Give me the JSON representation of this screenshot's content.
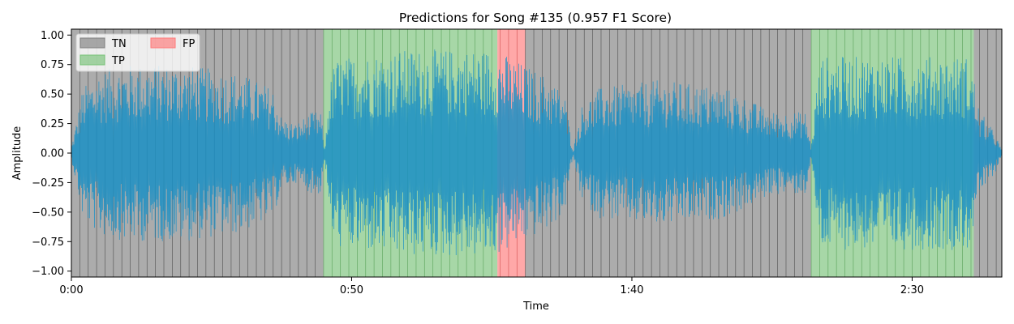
{
  "chart_data": {
    "type": "area",
    "title": "Predictions for Song #135 (0.957 F1 Score)",
    "xlabel": "Time",
    "ylabel": "Amplitude",
    "xlim": [
      0,
      166
    ],
    "ylim": [
      -1.05,
      1.05
    ],
    "x_ticks": [
      {
        "value": 0,
        "label": "0:00"
      },
      {
        "value": 50,
        "label": "0:50"
      },
      {
        "value": 100,
        "label": "1:40"
      },
      {
        "value": 150,
        "label": "2:30"
      }
    ],
    "y_ticks": [
      {
        "value": 1.0,
        "label": "1.00"
      },
      {
        "value": 0.75,
        "label": "0.75"
      },
      {
        "value": 0.5,
        "label": "0.50"
      },
      {
        "value": 0.25,
        "label": "0.25"
      },
      {
        "value": 0.0,
        "label": "0.00"
      },
      {
        "value": -0.25,
        "label": "−0.25"
      },
      {
        "value": -0.5,
        "label": "−0.50"
      },
      {
        "value": -0.75,
        "label": "−0.75"
      },
      {
        "value": -1.0,
        "label": "−1.00"
      }
    ],
    "legend": {
      "placement": "upper-left",
      "entries": [
        {
          "label": "TN",
          "color": "#808080"
        },
        {
          "label": "TP",
          "color": "#78c278"
        },
        {
          "label": "FP",
          "color": "#ff7a7a"
        }
      ]
    },
    "segments": [
      {
        "class": "TN",
        "start": 0,
        "end": 45
      },
      {
        "class": "TP",
        "start": 45,
        "end": 76
      },
      {
        "class": "FP",
        "start": 76,
        "end": 81
      },
      {
        "class": "TN",
        "start": 81,
        "end": 132
      },
      {
        "class": "TP",
        "start": 132,
        "end": 161
      },
      {
        "class": "TN",
        "start": 161,
        "end": 166
      }
    ],
    "window_seconds": 1.5,
    "waveform": {
      "color": "#1a8fc4",
      "envelope": [
        {
          "t": 0,
          "amp": 0.05
        },
        {
          "t": 1,
          "amp": 0.3
        },
        {
          "t": 2,
          "amp": 0.55
        },
        {
          "t": 5,
          "amp": 0.7
        },
        {
          "t": 10,
          "amp": 0.75
        },
        {
          "t": 20,
          "amp": 0.75
        },
        {
          "t": 30,
          "amp": 0.68
        },
        {
          "t": 36,
          "amp": 0.55
        },
        {
          "t": 37.5,
          "amp": 0.3
        },
        {
          "t": 40,
          "amp": 0.25
        },
        {
          "t": 43,
          "amp": 0.35
        },
        {
          "t": 44.5,
          "amp": 0.35
        },
        {
          "t": 45.2,
          "amp": 0.03
        },
        {
          "t": 46,
          "amp": 0.55
        },
        {
          "t": 47,
          "amp": 0.8
        },
        {
          "t": 60,
          "amp": 0.88
        },
        {
          "t": 74,
          "amp": 0.88
        },
        {
          "t": 77,
          "amp": 0.85
        },
        {
          "t": 82,
          "amp": 0.72
        },
        {
          "t": 85,
          "amp": 0.65
        },
        {
          "t": 88,
          "amp": 0.5
        },
        {
          "t": 89.5,
          "amp": 0.02
        },
        {
          "t": 91,
          "amp": 0.4
        },
        {
          "t": 94,
          "amp": 0.55
        },
        {
          "t": 105,
          "amp": 0.62
        },
        {
          "t": 117,
          "amp": 0.55
        },
        {
          "t": 125,
          "amp": 0.35
        },
        {
          "t": 131,
          "amp": 0.35
        },
        {
          "t": 132,
          "amp": 0.05
        },
        {
          "t": 133,
          "amp": 0.6
        },
        {
          "t": 134,
          "amp": 0.82
        },
        {
          "t": 160,
          "amp": 0.82
        },
        {
          "t": 161,
          "amp": 0.65
        },
        {
          "t": 162,
          "amp": 0.35
        },
        {
          "t": 163,
          "amp": 0.3
        },
        {
          "t": 165,
          "amp": 0.15
        },
        {
          "t": 166,
          "amp": 0.02
        }
      ]
    }
  }
}
